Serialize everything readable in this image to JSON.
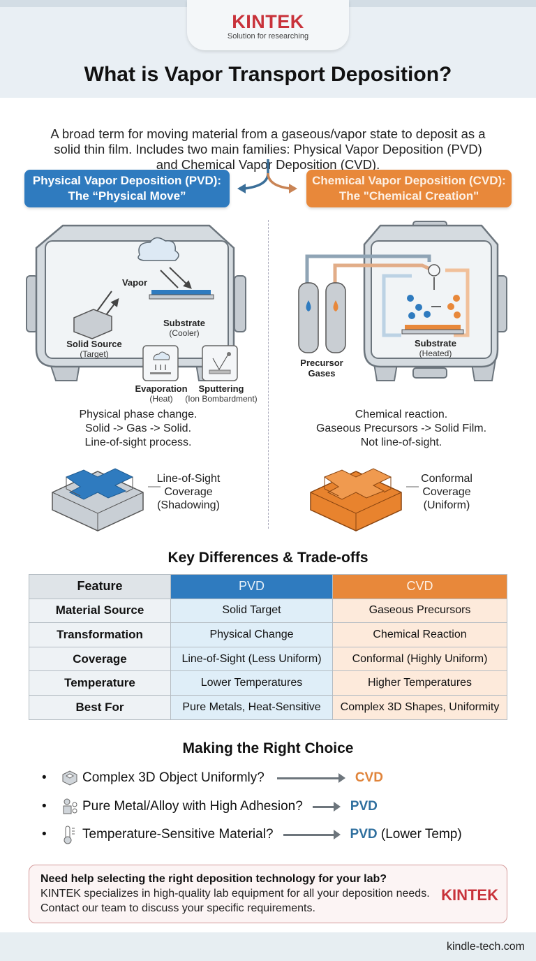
{
  "brand": {
    "logo": "KINTEK",
    "tagline": "Solution for researching",
    "color": "#c8323a"
  },
  "title": "What is Vapor Transport Deposition?",
  "intro": "A broad term for moving material from a gaseous/vapor state to deposit as a solid thin film. Includes two main families: Physical Vapor Deposition (PVD) and Chemical Vapor Deposition (CVD).",
  "colors": {
    "pvd": "#2f7bbf",
    "cvd": "#e8883a"
  },
  "pvd": {
    "heading": "Physical Vapor Deposition (PVD):",
    "subheading": "The “Physical Move”",
    "labels": {
      "vapor": "Vapor",
      "substrate": "Substrate",
      "substrate_note": "(Cooler)",
      "source": "Solid Source",
      "source_note": "(Target)",
      "evaporation": "Evaporation",
      "evaporation_note": "(Heat)",
      "sputtering": "Sputtering",
      "sputtering_note": "(Ion Bombardment)"
    },
    "description": [
      "Physical phase change.",
      "Solid -> Gas -> Solid.",
      "Line-of-sight process."
    ],
    "coverage": [
      "Line-of-Sight",
      "Coverage",
      "(Shadowing)"
    ]
  },
  "cvd": {
    "heading": "Chemical Vapor Deposition (CVD):",
    "subheading": "The \"Chemical Creation\"",
    "labels": {
      "gases": "Precursor",
      "gases2": "Gases",
      "substrate": "Substrate",
      "substrate_note": "(Heated)"
    },
    "description": [
      "Chemical reaction.",
      "Gaseous Precursors -> Solid Film.",
      "Not line-of-sight."
    ],
    "coverage": [
      "Conformal",
      "Coverage",
      "(Uniform)"
    ]
  },
  "table": {
    "title": "Key Differences & Trade-offs",
    "headers": [
      "Feature",
      "PVD",
      "CVD"
    ],
    "rows": [
      [
        "Material Source",
        "Solid Target",
        "Gaseous Precursors"
      ],
      [
        "Transformation",
        "Physical Change",
        "Chemical Reaction"
      ],
      [
        "Coverage",
        "Line-of-Sight (Less Uniform)",
        "Conformal (Highly Uniform)"
      ],
      [
        "Temperature",
        "Lower Temperatures",
        "Higher Temperatures"
      ],
      [
        "Best For",
        "Pure Metals, Heat-Sensitive",
        "Complex 3D Shapes, Uniformity"
      ]
    ]
  },
  "choice": {
    "title": "Making the Right Choice",
    "items": [
      {
        "icon": "complex-3d-object-icon",
        "question": "Complex 3D Object Uniformly?",
        "answer": "CVD",
        "note": ""
      },
      {
        "icon": "metal-alloy-icon",
        "question": "Pure Metal/Alloy with High Adhesion?",
        "answer": "PVD",
        "note": ""
      },
      {
        "icon": "thermometer-icon",
        "question": "Temperature-Sensitive Material?",
        "answer": "PVD",
        "note": " (Lower Temp)"
      }
    ]
  },
  "cta": {
    "heading": "Need help selecting the right deposition technology for your lab?",
    "body": "KINTEK specializes in high-quality lab equipment for all your deposition needs. Contact our team to discuss your specific requirements.",
    "logo": "KINTEK"
  },
  "footer": {
    "url": "kindle-tech.com"
  }
}
